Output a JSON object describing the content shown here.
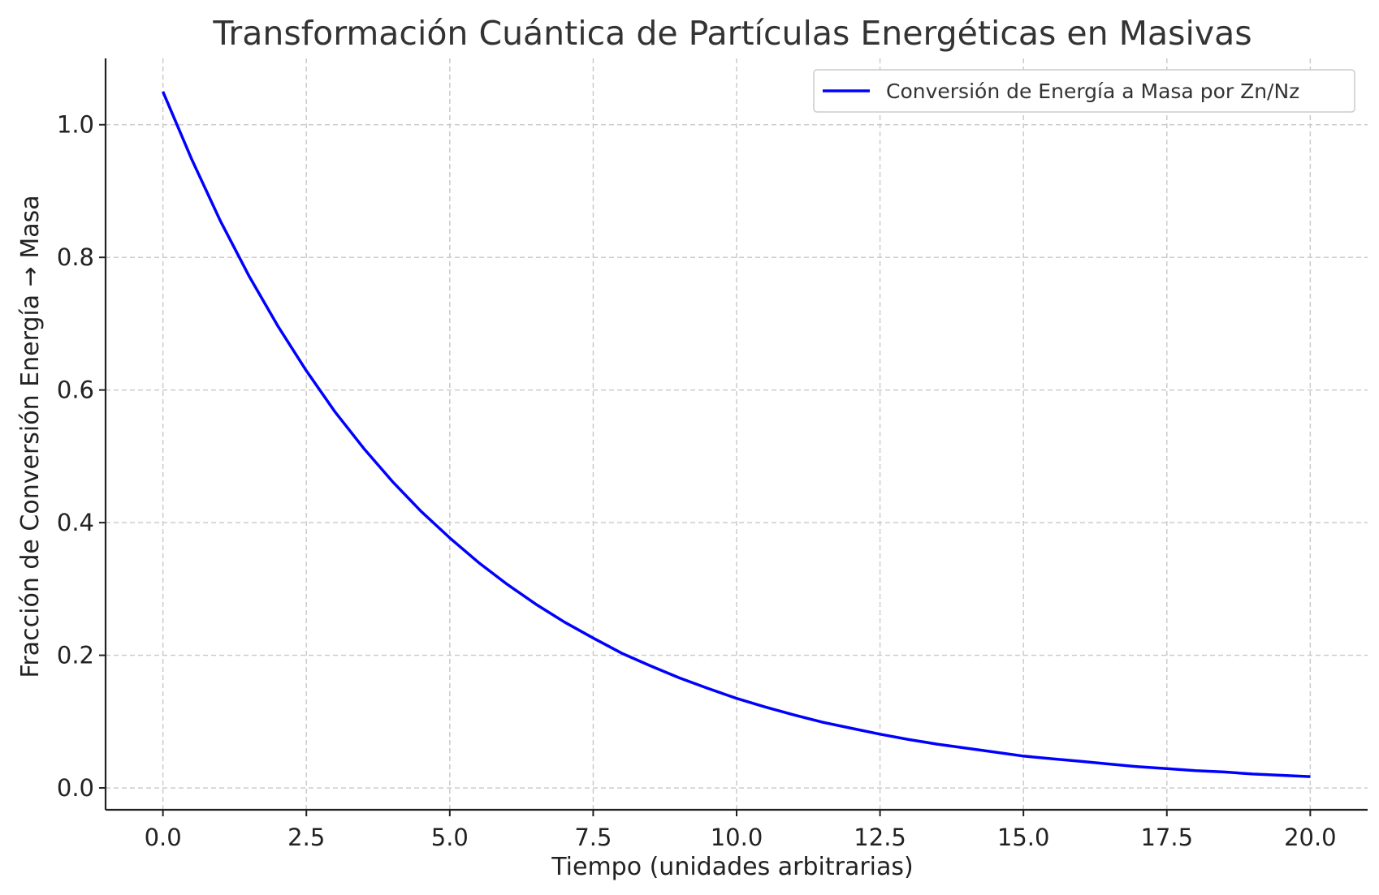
{
  "chart_data": {
    "type": "line",
    "title": "Transformación Cuántica de Partículas Energéticas en Masivas",
    "xlabel": "Tiempo (unidades arbitrarias)",
    "ylabel": "Fracción de Conversión Energía → Masa",
    "xlim": [
      -1.0,
      21.0
    ],
    "ylim": [
      -0.033,
      1.1
    ],
    "xticks": [
      0.0,
      2.5,
      5.0,
      7.5,
      10.0,
      12.5,
      15.0,
      17.5,
      20.0
    ],
    "xtick_labels": [
      "0.0",
      "2.5",
      "5.0",
      "7.5",
      "10.0",
      "12.5",
      "15.0",
      "17.5",
      "20.0"
    ],
    "yticks": [
      0.0,
      0.2,
      0.4,
      0.6,
      0.8,
      1.0
    ],
    "ytick_labels": [
      "0.0",
      "0.2",
      "0.4",
      "0.6",
      "0.8",
      "1.0"
    ],
    "grid": true,
    "legend_position": "top-right",
    "series": [
      {
        "name": "Conversión de Energía a Masa por Zn/Nz",
        "color": "#0000ff",
        "x": [
          0.0,
          0.5,
          1.0,
          1.5,
          2.0,
          2.5,
          3.0,
          3.5,
          4.0,
          4.5,
          5.0,
          5.5,
          6.0,
          6.5,
          7.0,
          7.5,
          8.0,
          8.5,
          9.0,
          9.5,
          10.0,
          10.5,
          11.0,
          11.5,
          12.0,
          12.5,
          13.0,
          13.5,
          14.0,
          14.5,
          15.0,
          15.5,
          16.0,
          16.5,
          17.0,
          17.5,
          18.0,
          18.5,
          19.0,
          19.5,
          20.0
        ],
        "y": [
          1.05,
          0.948,
          0.855,
          0.772,
          0.697,
          0.629,
          0.567,
          0.512,
          0.462,
          0.417,
          0.377,
          0.34,
          0.307,
          0.277,
          0.25,
          0.226,
          0.203,
          0.184,
          0.166,
          0.15,
          0.135,
          0.122,
          0.11,
          0.099,
          0.09,
          0.081,
          0.073,
          0.066,
          0.06,
          0.054,
          0.048,
          0.044,
          0.04,
          0.036,
          0.032,
          0.029,
          0.026,
          0.024,
          0.021,
          0.019,
          0.017
        ]
      }
    ]
  }
}
